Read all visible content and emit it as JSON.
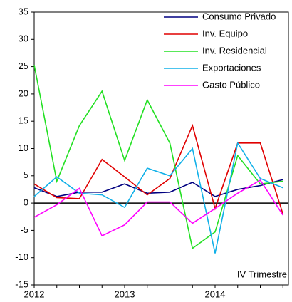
{
  "chart_data": {
    "type": "line",
    "categories": [
      "2012",
      null,
      null,
      null,
      "2013",
      null,
      null,
      null,
      "2014",
      null,
      null,
      null
    ],
    "series": [
      {
        "name": "Consumo Privado",
        "color": "#000080",
        "values": [
          2.8,
          1.2,
          2.0,
          2.0,
          3.5,
          1.8,
          2.0,
          3.8,
          1.2,
          2.5,
          3.2,
          4.3
        ]
      },
      {
        "name": "Inv. Equipo",
        "color": "#e00000",
        "values": [
          3.5,
          1.0,
          0.8,
          8.0,
          4.8,
          1.5,
          4.5,
          14.2,
          -1.0,
          11.0,
          11.0,
          -2.0
        ]
      },
      {
        "name": "Inv. Residencial",
        "color": "#22e022",
        "values": [
          25.3,
          4.0,
          14.2,
          20.5,
          7.8,
          18.9,
          11.0,
          -8.3,
          -5.3,
          8.7,
          3.5,
          4.0
        ]
      },
      {
        "name": "Exportaciones",
        "color": "#10b0e8",
        "values": [
          1.2,
          4.8,
          1.8,
          1.5,
          -0.8,
          6.4,
          5.0,
          10.0,
          -9.2,
          11.0,
          4.5,
          2.8
        ]
      },
      {
        "name": "Gasto Público",
        "color": "#ff00ff",
        "values": [
          -2.6,
          -0.3,
          2.7,
          -6.0,
          -4.0,
          0.2,
          0.2,
          -3.7,
          -1.0,
          1.8,
          4.2,
          -2.2
        ]
      }
    ],
    "ylim": [
      -15,
      35
    ],
    "yticks": [
      -15,
      -10,
      -5,
      0,
      5,
      10,
      15,
      20,
      25,
      30,
      35
    ],
    "annotation": "IV Trimestre",
    "legend": "upper right",
    "grid": false
  }
}
